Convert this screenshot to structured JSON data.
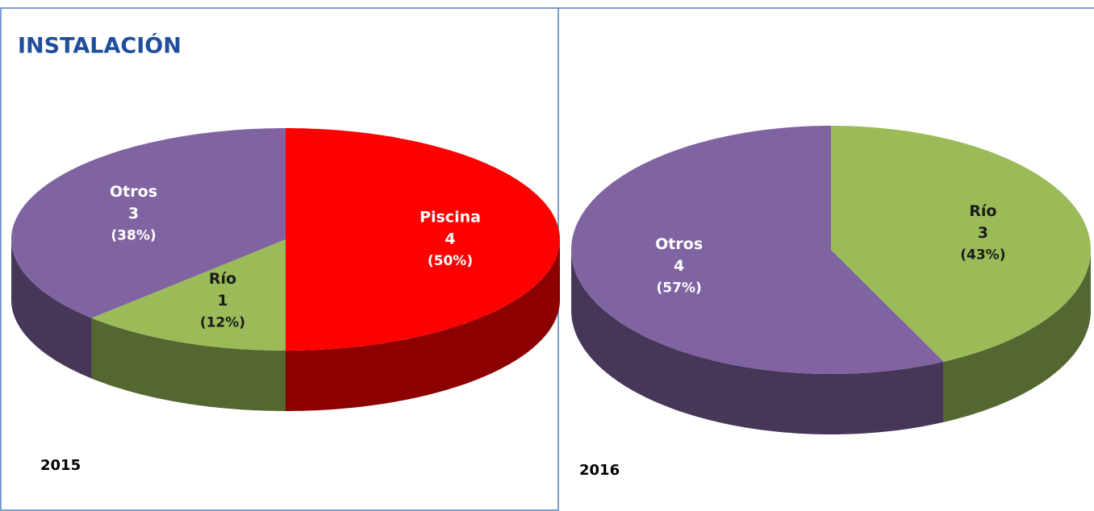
{
  "chart_data": [
    {
      "type": "pie3d",
      "title": "INSTALACIÓN",
      "subtitle": "2015",
      "categories": [
        "Piscina",
        "Río",
        "Otros"
      ],
      "values": [
        4,
        1,
        3
      ],
      "percent_labels": [
        "(50%)",
        "(12%)",
        "(38%)"
      ],
      "colors": [
        "#ff0000",
        "#9bbb59",
        "#8064a2"
      ],
      "label_colors": [
        "#ffffff",
        "#1a1a1a",
        "#ffffff"
      ]
    },
    {
      "type": "pie3d",
      "subtitle": "2016",
      "categories": [
        "Río",
        "Otros"
      ],
      "values": [
        3,
        4
      ],
      "percent_labels": [
        "(43%)",
        "(57%)"
      ],
      "colors": [
        "#9bbb59",
        "#8064a2"
      ],
      "label_colors": [
        "#1a1a1a",
        "#ffffff"
      ]
    }
  ]
}
